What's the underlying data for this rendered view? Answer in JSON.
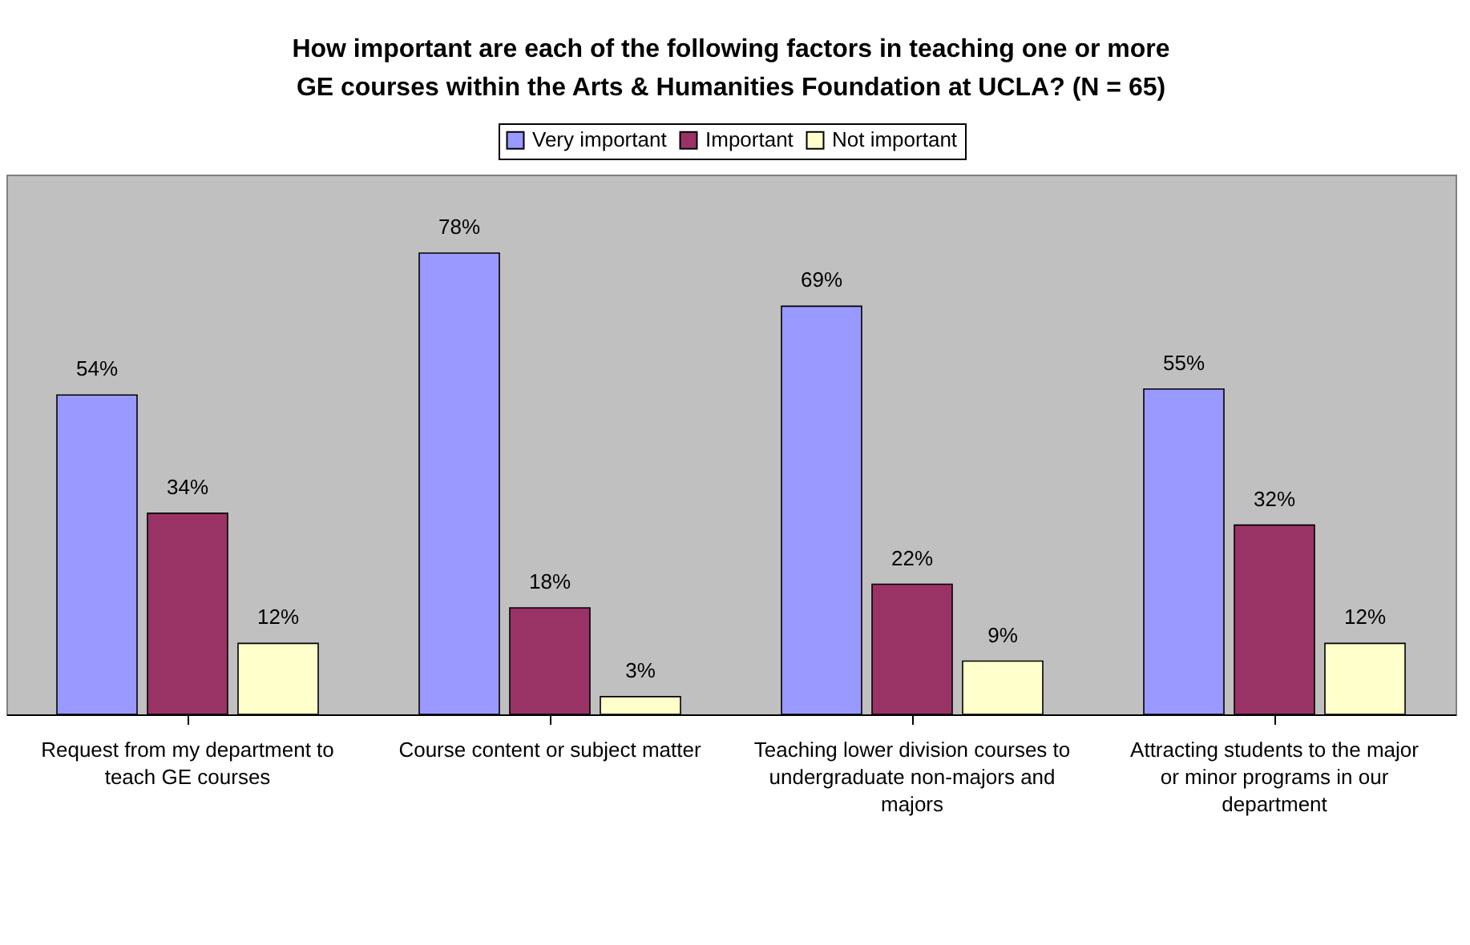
{
  "chart_data": {
    "type": "bar",
    "title": "How important are each of the following factors in teaching one or more GE courses within the Arts & Humanities Foundation at UCLA? (N = 65)",
    "categories": [
      "Request from my department to teach GE courses",
      "Course content or subject matter",
      "Teaching lower division courses to undergraduate non-majors and majors",
      "Attracting students to the major or minor programs in our department"
    ],
    "series": [
      {
        "name": "Very important",
        "color": "#9999ff",
        "values": [
          54,
          78,
          69,
          55
        ],
        "value_labels": [
          "54%",
          "78%",
          "69%",
          "55%"
        ]
      },
      {
        "name": "Important",
        "color": "#993366",
        "values": [
          34,
          18,
          22,
          32
        ],
        "value_labels": [
          "34%",
          "18%",
          "22%",
          "32%"
        ]
      },
      {
        "name": "Not important",
        "color": "#ffffcc",
        "values": [
          12,
          3,
          9,
          12
        ],
        "value_labels": [
          "12%",
          "3%",
          "9%",
          "12%"
        ]
      }
    ],
    "legend": "top"
  }
}
